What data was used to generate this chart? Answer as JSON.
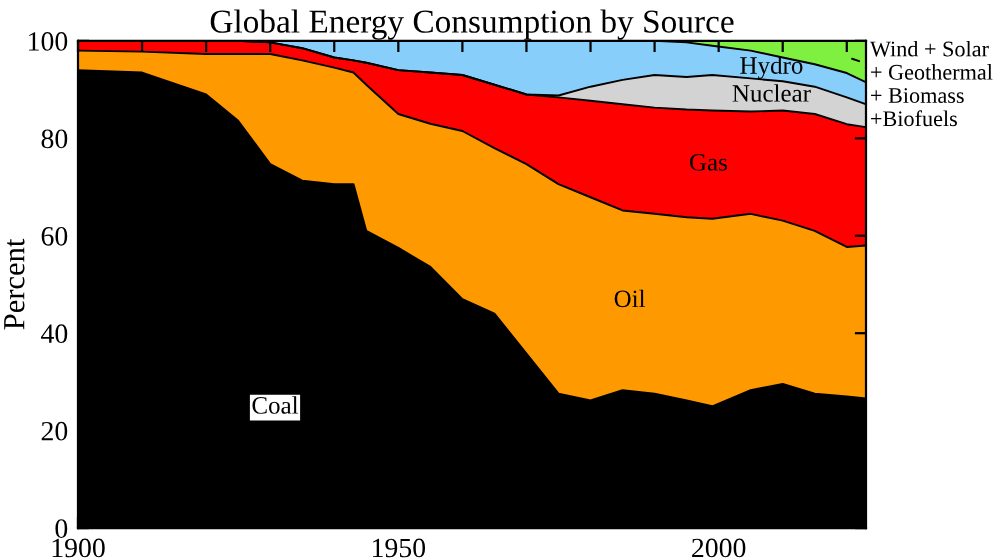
{
  "chart_data": {
    "type": "area",
    "stacked": true,
    "title": "Global Energy Consumption by Source",
    "ylabel": "Percent",
    "x": [
      1900,
      1910,
      1920,
      1925,
      1930,
      1935,
      1940,
      1943,
      1945,
      1950,
      1955,
      1960,
      1965,
      1970,
      1975,
      1980,
      1985,
      1990,
      1995,
      1999,
      2005,
      2010,
      2015,
      2020,
      2023
    ],
    "series": [
      {
        "name": "Coal",
        "color": "#000000",
        "values": [
          94,
          93.5,
          89,
          83.6,
          74.7,
          71.3,
          70.6,
          70.6,
          61,
          57.5,
          53.6,
          47,
          44,
          35.8,
          27.6,
          26.2,
          28.3,
          27.6,
          26.2,
          25,
          28.3,
          29.6,
          27.6,
          27,
          26.6
        ]
      },
      {
        "name": "Oil",
        "color": "#ff9900",
        "values": [
          4,
          4.3,
          8.3,
          13.7,
          22.6,
          24.7,
          23.9,
          22.9,
          30,
          27.5,
          29.4,
          34.5,
          34,
          38.9,
          43,
          41.7,
          36.9,
          36.9,
          37.6,
          38.5,
          36.2,
          33.5,
          33.4,
          30.7,
          31.4
        ]
      },
      {
        "name": "Gas",
        "color": "#ff0000",
        "values": [
          2,
          2.2,
          2.7,
          2.7,
          2.4,
          2.5,
          2.1,
          2.5,
          4.5,
          9,
          10.5,
          11.5,
          13,
          14.3,
          17.8,
          19.8,
          21.8,
          21.8,
          22.1,
          22.2,
          21,
          22.6,
          24,
          25.2,
          24.3
        ]
      },
      {
        "name": "Nuclear",
        "color": "#d3d3d3",
        "values": [
          0,
          0,
          0,
          0,
          0,
          0,
          0,
          0,
          0,
          0,
          0,
          0,
          0,
          0,
          0.4,
          2.9,
          5,
          6.7,
          6.7,
          7.3,
          6.8,
          6,
          5.6,
          5.5,
          4.7
        ]
      },
      {
        "name": "Hydro",
        "color": "#87cefa",
        "values": [
          0,
          0,
          0,
          0,
          0.3,
          1.5,
          3.4,
          4,
          4.5,
          6,
          6.5,
          7,
          9,
          11,
          11.2,
          9.4,
          8,
          7,
          7.1,
          6,
          5.7,
          4.9,
          4.6,
          5,
          4.5
        ]
      },
      {
        "name": "Wind + Solar\n+ Geothermal\n+ Biomass\n+Biofuels",
        "color": "#80f040",
        "values": [
          0,
          0,
          0,
          0,
          0,
          0,
          0,
          0,
          0,
          0,
          0,
          0,
          0,
          0,
          0,
          0,
          0,
          0,
          0.3,
          1,
          2,
          3.4,
          4.8,
          6.6,
          8.5
        ]
      }
    ],
    "xlim": [
      1900,
      2023
    ],
    "ylim": [
      0,
      100
    ],
    "xticks": [
      1900,
      {
        "value": 1910,
        "label": null
      },
      {
        "value": 1920,
        "label": null
      },
      {
        "value": 1930,
        "label": null
      },
      {
        "value": 1940,
        "label": null
      },
      1950,
      {
        "value": 1960,
        "label": null
      },
      {
        "value": 1970,
        "label": null
      },
      {
        "value": 1980,
        "label": null
      },
      {
        "value": 1990,
        "label": null
      },
      2000,
      {
        "value": 2010,
        "label": null
      },
      {
        "value": 2020,
        "label": null
      }
    ],
    "yticks": [
      0,
      20,
      40,
      60,
      80,
      100
    ],
    "grid": false,
    "legend": "top right"
  }
}
